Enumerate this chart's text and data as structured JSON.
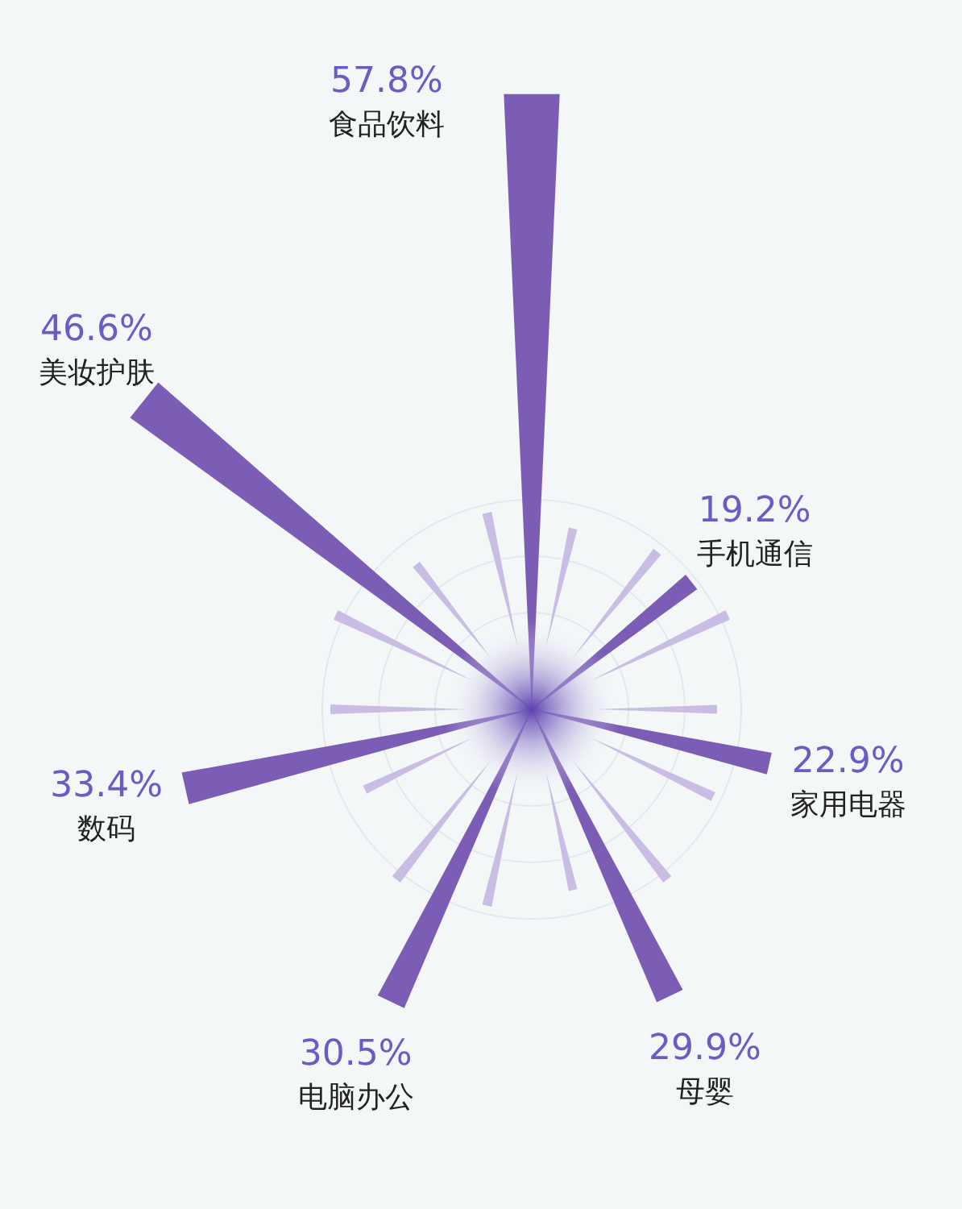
{
  "chart_data": {
    "type": "other",
    "categories": [
      "食品饮料",
      "手机通信",
      "家用电器",
      "母婴",
      "电脑办公",
      "数码",
      "美妆护肤"
    ],
    "values": [
      57.8,
      19.2,
      22.9,
      29.9,
      30.5,
      33.4,
      46.6
    ],
    "value_labels": [
      "57.8%",
      "19.2%",
      "22.9%",
      "29.9%",
      "30.5%",
      "33.4%",
      "46.6%"
    ],
    "color": "#7b5db5"
  }
}
